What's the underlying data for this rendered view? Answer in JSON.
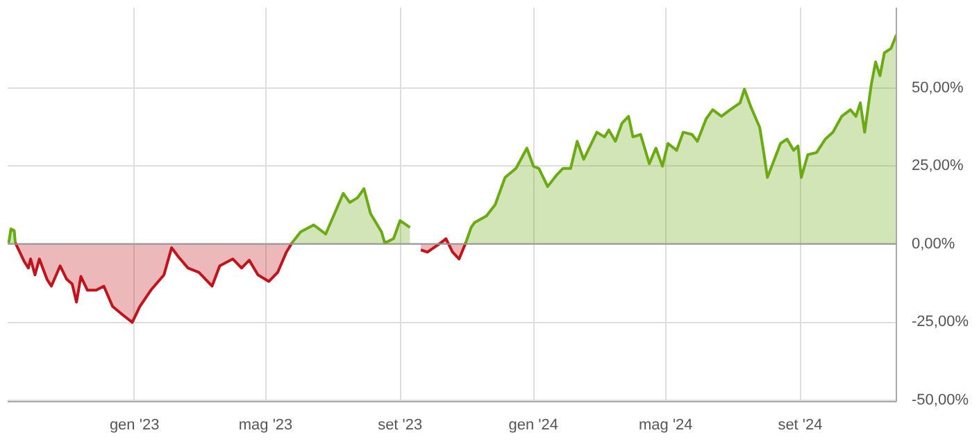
{
  "chart_data": {
    "type": "area",
    "x": [
      "2022-09-08",
      "2022-09-10",
      "2022-09-13",
      "2022-09-14",
      "2022-09-22",
      "2022-09-26",
      "2022-09-28",
      "2022-10-02",
      "2022-10-06",
      "2022-10-13",
      "2022-10-17",
      "2022-10-25",
      "2022-10-31",
      "2022-11-05",
      "2022-11-09",
      "2022-11-13",
      "2022-11-19",
      "2022-11-27",
      "2022-12-04",
      "2022-12-12",
      "2022-12-22",
      "2022-12-30",
      "2023-01-06",
      "2023-01-16",
      "2023-01-28",
      "2023-02-04",
      "2023-02-10",
      "2023-02-19",
      "2023-03-01",
      "2023-03-13",
      "2023-03-20",
      "2023-04-01",
      "2023-04-09",
      "2023-04-16",
      "2023-04-24",
      "2023-05-04",
      "2023-05-12",
      "2023-05-20",
      "2023-05-25",
      "2023-06-02",
      "2023-06-14",
      "2023-06-25",
      "2023-07-03",
      "2023-07-11",
      "2023-07-17",
      "2023-07-24",
      "2023-07-30",
      "2023-08-05",
      "2023-08-15",
      "2023-08-18",
      "2023-08-26",
      "2023-09-01",
      "2023-09-10",
      "2023-09-20",
      "2023-09-26",
      "2023-10-08",
      "2023-10-13",
      "2023-10-19",
      "2023-10-25",
      "2023-10-31",
      "2023-11-05",
      "2023-11-08",
      "2023-11-19",
      "2023-11-27",
      "2023-12-06",
      "2023-12-16",
      "2023-12-26",
      "2024-01-01",
      "2024-01-06",
      "2024-01-14",
      "2024-01-22",
      "2024-01-28",
      "2024-02-04",
      "2024-02-10",
      "2024-02-16",
      "2024-02-24",
      "2024-02-28",
      "2024-03-06",
      "2024-03-10",
      "2024-03-16",
      "2024-03-22",
      "2024-03-28",
      "2024-04-01",
      "2024-04-08",
      "2024-04-16",
      "2024-04-22",
      "2024-04-28",
      "2024-05-03",
      "2024-05-11",
      "2024-05-17",
      "2024-05-25",
      "2024-05-30",
      "2024-06-07",
      "2024-06-13",
      "2024-06-21",
      "2024-06-29",
      "2024-07-08",
      "2024-07-12",
      "2024-07-18",
      "2024-07-26",
      "2024-07-30",
      "2024-08-02",
      "2024-08-06",
      "2024-08-14",
      "2024-08-20",
      "2024-08-26",
      "2024-08-30",
      "2024-09-02",
      "2024-09-08",
      "2024-09-16",
      "2024-09-24",
      "2024-10-01",
      "2024-10-09",
      "2024-10-17",
      "2024-10-22",
      "2024-10-26",
      "2024-10-30",
      "2024-11-05",
      "2024-11-09",
      "2024-11-13",
      "2024-11-17",
      "2024-11-23",
      "2024-11-28"
    ],
    "series": [
      {
        "color": "#6aaa12",
        "values": [
          0.3,
          4.8,
          4.3,
          0.4,
          null,
          null,
          null,
          null,
          null,
          null,
          null,
          null,
          null,
          null,
          null,
          null,
          null,
          null,
          null,
          null,
          null,
          null,
          null,
          null,
          null,
          null,
          null,
          null,
          null,
          null,
          null,
          null,
          null,
          null,
          null,
          null,
          null,
          null,
          0.3,
          3.9,
          6.1,
          3.2,
          9.7,
          16.2,
          13.3,
          14.8,
          17.7,
          9.7,
          3.9,
          0.3,
          1.7,
          7.5,
          5.3,
          null,
          null,
          null,
          null,
          null,
          null,
          0.3,
          5.3,
          6.8,
          9.0,
          12.6,
          21.3,
          24.2,
          30.7,
          24.9,
          24.2,
          18.4,
          22.0,
          24.2,
          24.2,
          32.9,
          27.1,
          32.9,
          35.8,
          34.3,
          36.5,
          32.9,
          38.7,
          40.9,
          34.3,
          35.1,
          25.7,
          30.7,
          24.9,
          32.2,
          30.0,
          35.8,
          35.1,
          32.9,
          40.1,
          43.0,
          40.9,
          43.0,
          45.2,
          49.6,
          43.8,
          37.3,
          28.6,
          21.3,
          24.9,
          32.2,
          33.6,
          30.0,
          31.4,
          21.3,
          28.6,
          29.3,
          33.6,
          35.8,
          40.9,
          43.0,
          40.9,
          45.2,
          35.8,
          51.0,
          58.3,
          53.9,
          61.2,
          62.6,
          67.0
        ]
      },
      {
        "color": "#c0141c",
        "values": [
          null,
          null,
          null,
          0.4,
          -5.5,
          -7.7,
          -4.8,
          -9.9,
          -4.8,
          -11.3,
          -13.5,
          -7.0,
          -11.3,
          -12.8,
          -18.6,
          -10.4,
          -14.8,
          -14.8,
          -13.5,
          -20.0,
          -22.9,
          -25.1,
          -20.0,
          -14.8,
          -9.9,
          -1.2,
          -4.0,
          -7.7,
          -9.1,
          -13.5,
          -7.0,
          -4.8,
          -7.7,
          -5.2,
          -9.9,
          -12.0,
          -9.1,
          -2.6,
          0.3,
          null,
          null,
          null,
          null,
          null,
          null,
          null,
          null,
          null,
          null,
          null,
          null,
          null,
          null,
          -1.9,
          -2.6,
          0.3,
          1.7,
          -2.6,
          -4.8,
          0.3,
          null,
          null,
          null,
          null,
          null,
          null,
          null,
          null,
          null,
          null,
          null,
          null,
          null,
          null,
          null,
          null,
          null,
          null,
          null,
          null,
          null,
          null,
          null,
          null,
          null,
          null,
          null,
          null,
          null,
          null,
          null,
          null,
          null,
          null,
          null,
          null,
          null,
          null,
          null,
          null,
          null,
          null,
          null,
          null,
          null,
          null,
          null,
          null,
          null,
          null,
          null,
          null,
          null,
          null,
          null,
          null,
          null,
          null,
          null,
          null,
          null,
          null,
          null
        ]
      }
    ],
    "xlim": [
      "2022-09-07",
      "2024-11-28"
    ],
    "xticks": [
      {
        "value": "2023-01-01",
        "label": "gen '23"
      },
      {
        "value": "2023-05-01",
        "label": "mag '23"
      },
      {
        "value": "2023-09-01",
        "label": "set '23"
      },
      {
        "value": "2024-01-01",
        "label": "gen '24"
      },
      {
        "value": "2024-05-01",
        "label": "mag '24"
      },
      {
        "value": "2024-09-01",
        "label": "set '24"
      }
    ],
    "ylim": [
      -50.5,
      75.7
    ],
    "yticks": [
      {
        "value": -50,
        "label": "-50,00%"
      },
      {
        "value": -25,
        "label": "-25,00%"
      },
      {
        "value": 0,
        "label": "0,00%"
      },
      {
        "value": 25,
        "label": "25,00%"
      },
      {
        "value": 50,
        "label": "50,00%"
      }
    ],
    "ref_lines": [
      {
        "axis": "y",
        "value": 0,
        "color": "#999999"
      }
    ],
    "grid": true
  }
}
